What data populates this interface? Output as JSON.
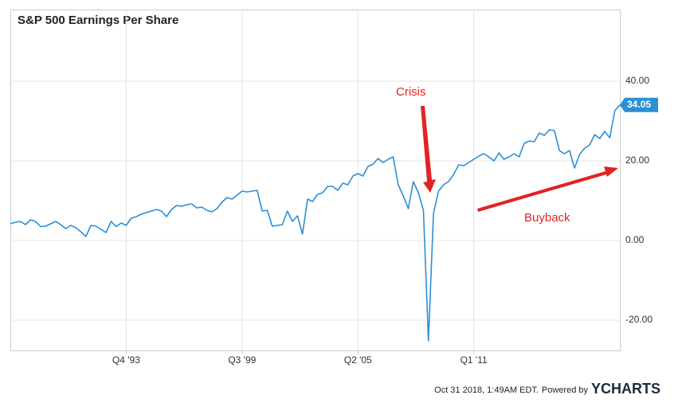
{
  "chart_data": {
    "type": "line",
    "title": "S&P 500 Earnings Per Share",
    "categories": [
      null,
      null,
      null,
      null,
      null,
      null,
      null,
      null,
      null,
      null,
      null,
      null,
      null,
      null,
      null,
      null,
      null,
      null,
      null,
      null,
      null,
      null,
      null,
      "Q4 '93",
      null,
      null,
      null,
      null,
      null,
      null,
      null,
      null,
      null,
      null,
      null,
      null,
      null,
      null,
      null,
      null,
      null,
      null,
      null,
      null,
      null,
      null,
      "Q3 '99",
      null,
      null,
      null,
      null,
      null,
      null,
      null,
      null,
      null,
      null,
      null,
      null,
      null,
      null,
      null,
      null,
      null,
      null,
      null,
      null,
      null,
      null,
      "Q2 '05",
      null,
      null,
      null,
      null,
      null,
      null,
      null,
      null,
      null,
      null,
      null,
      null,
      null,
      null,
      null,
      null,
      null,
      null,
      null,
      null,
      null,
      null,
      "Q1 '11",
      null,
      null,
      null,
      null,
      null,
      null,
      null,
      null,
      null,
      null,
      null,
      null,
      null,
      null,
      null,
      null,
      null,
      null,
      null,
      null,
      null,
      null,
      null,
      null,
      null,
      null,
      null,
      null,
      null
    ],
    "series": [
      {
        "name": "S&P 500 Earnings Per Share",
        "color": "#2a8fd6",
        "values": [
          4.2,
          4.6,
          4.8,
          4.0,
          5.2,
          4.8,
          3.5,
          3.6,
          4.2,
          4.8,
          4.0,
          3.0,
          3.8,
          3.2,
          2.2,
          1.0,
          3.8,
          3.6,
          2.8,
          2.0,
          4.8,
          3.5,
          4.4,
          3.8,
          5.6,
          6.0,
          6.6,
          7.0,
          7.4,
          7.8,
          7.4,
          6.0,
          7.8,
          8.8,
          8.6,
          9.0,
          9.2,
          8.2,
          8.4,
          7.6,
          7.2,
          8.0,
          9.6,
          10.8,
          10.4,
          11.4,
          12.4,
          12.2,
          12.4,
          12.6,
          7.4,
          7.6,
          3.6,
          3.8,
          4.0,
          7.4,
          4.8,
          6.2,
          1.6,
          10.4,
          9.8,
          11.6,
          12.0,
          13.6,
          13.6,
          12.6,
          14.4,
          14.0,
          16.2,
          16.8,
          16.2,
          18.6,
          19.2,
          20.6,
          19.6,
          20.4,
          21.0,
          14.0,
          11.2,
          8.0,
          14.8,
          12.0,
          7.6,
          -25.2,
          6.8,
          12.4,
          14.0,
          14.8,
          16.6,
          19.0,
          18.8,
          19.6,
          20.4,
          21.2,
          21.8,
          21.0,
          20.0,
          22.0,
          20.4,
          21.0,
          21.8,
          21.0,
          24.4,
          25.0,
          24.8,
          27.0,
          26.4,
          27.8,
          27.6,
          22.6,
          21.8,
          22.6,
          18.2,
          21.6,
          23.2,
          24.0,
          26.6,
          25.6,
          27.4,
          25.8,
          32.6,
          34.05
        ]
      }
    ],
    "ylim": [
      -27.6,
      58
    ],
    "yticks": [
      {
        "value": -20,
        "label": "-20.00"
      },
      {
        "value": 0,
        "label": "0.00"
      },
      {
        "value": 20,
        "label": "20.00"
      },
      {
        "value": 40,
        "label": "40.00"
      }
    ],
    "grid": true,
    "annotations": [
      "Crisis",
      "Buyback"
    ],
    "credit": {
      "timestamp": "Oct 31 2018, 1:49AM EDT.",
      "powered_by": "Powered by",
      "brand": "YCHARTS"
    }
  }
}
